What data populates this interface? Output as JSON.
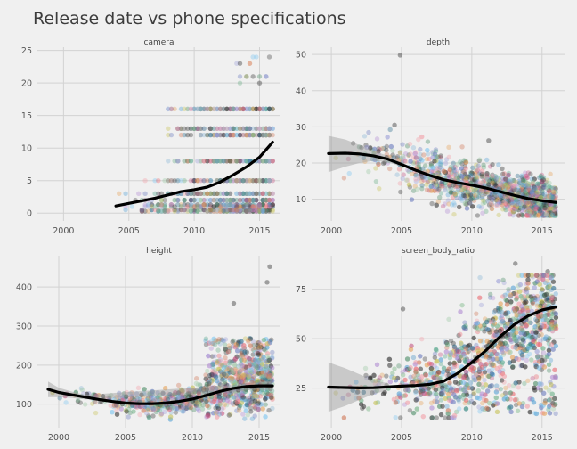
{
  "chart_data": {
    "type": "scatter",
    "title": "Release date vs phone specifications",
    "grid": true,
    "facets": [
      {
        "name": "camera",
        "xlim": [
          1998,
          2016.6
        ],
        "ylim": [
          -1.2,
          25.5
        ],
        "x_ticks": [
          2000,
          2005,
          2010,
          2015
        ],
        "y_ticks": [
          0,
          5,
          10,
          15,
          20,
          25
        ],
        "smooth": [
          [
            2004,
            1.1
          ],
          [
            2005,
            1.5
          ],
          [
            2006,
            1.9
          ],
          [
            2007,
            2.3
          ],
          [
            2008,
            2.8
          ],
          [
            2009,
            3.3
          ],
          [
            2010,
            3.6
          ],
          [
            2011,
            4.0
          ],
          [
            2012,
            4.8
          ],
          [
            2013,
            5.9
          ],
          [
            2014,
            7.1
          ],
          [
            2015,
            8.6
          ],
          [
            2016,
            10.9
          ]
        ],
        "band": null,
        "levels": [
          0.3,
          0.5,
          1,
          1.3,
          2,
          3,
          5,
          8,
          12,
          13,
          16
        ],
        "rare_levels": [
          20,
          21,
          23,
          24
        ],
        "x_start": 2004,
        "n_points": 1100
      },
      {
        "name": "depth",
        "xlim": [
          1998.6,
          2016.6
        ],
        "ylim": [
          4,
          52
        ],
        "x_ticks": [
          2000,
          2005,
          2010,
          2015
        ],
        "y_ticks": [
          10,
          20,
          30,
          40,
          50
        ],
        "smooth": [
          [
            1999.8,
            22.6
          ],
          [
            2001,
            22.7
          ],
          [
            2002,
            22.5
          ],
          [
            2003,
            22.0
          ],
          [
            2004,
            21.1
          ],
          [
            2005,
            19.6
          ],
          [
            2006,
            18.0
          ],
          [
            2007,
            16.6
          ],
          [
            2008,
            15.4
          ],
          [
            2009,
            14.6
          ],
          [
            2010,
            13.9
          ],
          [
            2011,
            13.1
          ],
          [
            2012,
            12.1
          ],
          [
            2013,
            11.1
          ],
          [
            2014,
            10.2
          ],
          [
            2015,
            9.6
          ],
          [
            2016,
            9.1
          ]
        ],
        "band": [
          [
            1999.8,
            17.5,
            27.5
          ],
          [
            2001,
            19.0,
            26.5
          ],
          [
            2002,
            20.0,
            25.0
          ],
          [
            2003,
            20.6,
            23.4
          ],
          [
            2004,
            20.3,
            22.0
          ],
          [
            2005,
            19.0,
            20.2
          ]
        ],
        "x_start": 2000,
        "n_points": 1500,
        "outliers": [
          [
            2004.9,
            49.8
          ],
          [
            2004.5,
            30.5
          ],
          [
            2011.2,
            26.2
          ]
        ]
      },
      {
        "name": "height",
        "xlim": [
          1998.4,
          2016.6
        ],
        "ylim": [
          40,
          480
        ],
        "x_ticks": [
          2000,
          2005,
          2010,
          2015
        ],
        "y_ticks": [
          100,
          200,
          300,
          400
        ],
        "smooth": [
          [
            1999.2,
            138
          ],
          [
            2000,
            130
          ],
          [
            2001,
            124
          ],
          [
            2002,
            118
          ],
          [
            2003,
            112
          ],
          [
            2004,
            107
          ],
          [
            2005,
            103
          ],
          [
            2006,
            101
          ],
          [
            2007,
            101
          ],
          [
            2008,
            103
          ],
          [
            2009,
            107
          ],
          [
            2010,
            113
          ],
          [
            2011,
            122
          ],
          [
            2012,
            132
          ],
          [
            2013,
            140
          ],
          [
            2014,
            145
          ],
          [
            2015,
            147
          ],
          [
            2016,
            147
          ]
        ],
        "band": [
          [
            1999.2,
            118,
            158
          ],
          [
            2000,
            118,
            142
          ],
          [
            2001,
            116,
            132
          ],
          [
            2002,
            112,
            124
          ],
          [
            2013,
            131,
            149
          ],
          [
            2014,
            136,
            154
          ],
          [
            2015,
            137,
            157
          ],
          [
            2016,
            134,
            160
          ]
        ],
        "x_start": 1999.2,
        "n_points": 1500,
        "outliers": [
          [
            2015.8,
            452
          ],
          [
            2015.6,
            412
          ],
          [
            2013.1,
            358
          ]
        ]
      },
      {
        "name": "screen_body_ratio",
        "xlim": [
          1998.6,
          2016.6
        ],
        "ylim": [
          5,
          92
        ],
        "x_ticks": [
          2000,
          2005,
          2010,
          2015
        ],
        "y_ticks": [
          25,
          50,
          75
        ],
        "smooth": [
          [
            1999.8,
            25.5
          ],
          [
            2001,
            25.3
          ],
          [
            2002,
            25.1
          ],
          [
            2003,
            25.2
          ],
          [
            2004,
            25.6
          ],
          [
            2005,
            26.0
          ],
          [
            2006,
            26.3
          ],
          [
            2007,
            26.9
          ],
          [
            2008,
            28.5
          ],
          [
            2009,
            32.5
          ],
          [
            2010,
            38.0
          ],
          [
            2011,
            44.0
          ],
          [
            2012,
            51.0
          ],
          [
            2013,
            57.0
          ],
          [
            2014,
            61.5
          ],
          [
            2015,
            64.5
          ],
          [
            2016,
            66.0
          ]
        ],
        "band": [
          [
            1999.8,
            13,
            38
          ],
          [
            2001,
            16,
            35
          ],
          [
            2002,
            19,
            32
          ],
          [
            2003,
            22,
            29
          ],
          [
            2004,
            23.8,
            27.5
          ]
        ],
        "x_start": 2000,
        "n_points": 1800,
        "outliers": [
          [
            2013.1,
            88
          ],
          [
            2015.4,
            84
          ],
          [
            2005.1,
            65
          ]
        ]
      }
    ]
  }
}
